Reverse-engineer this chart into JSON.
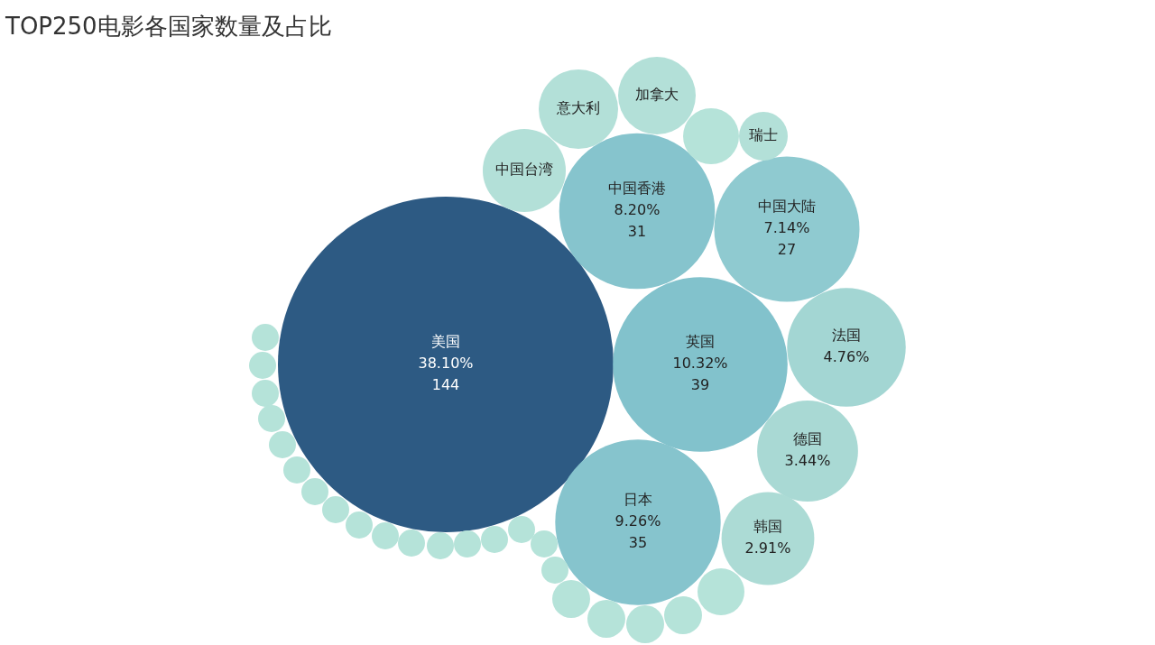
{
  "chart_data": {
    "type": "other",
    "title": "TOP250电影各国家数量及占比",
    "categories": [
      "美国",
      "中国香港",
      "中国大陆",
      "英国",
      "日本",
      "法国",
      "德国",
      "韩国",
      "中国台湾",
      "意大利",
      "加拿大",
      "瑞士",
      null,
      null,
      null,
      null,
      null,
      null,
      null,
      null,
      null,
      null,
      null,
      null,
      null,
      null,
      null,
      null,
      null,
      null,
      null,
      null,
      null,
      null,
      null
    ],
    "values": [
      38.1,
      8.2,
      7.14,
      10.32,
      9.26,
      4.76,
      3.44,
      2.91,
      null,
      null,
      null,
      null,
      null,
      null,
      null,
      null,
      null,
      null,
      null,
      null,
      null,
      null,
      null,
      null,
      null,
      null,
      null,
      null,
      null,
      null,
      null,
      null,
      null,
      null,
      null
    ],
    "value_labels": [
      "38.10%",
      "8.20%",
      "7.14%",
      "10.32%",
      "9.26%",
      "4.76%",
      "3.44%",
      "2.91%",
      null,
      null,
      null,
      null,
      null,
      null,
      null,
      null,
      null,
      null,
      null,
      null,
      null,
      null,
      null,
      null,
      null,
      null,
      null,
      null,
      null,
      null,
      null,
      null,
      null,
      null,
      null
    ],
    "annotations": [
      {
        "text": "144",
        "x": "美国"
      },
      {
        "text": "31",
        "x": "中国香港"
      },
      {
        "text": "27",
        "x": "中国大陆"
      },
      {
        "text": "39",
        "x": "英国"
      },
      {
        "text": "35",
        "x": "日本"
      }
    ],
    "colors": [
      "#2d5a83",
      "#86c4cd",
      "#8fcad0",
      "#82c2cc",
      "#86c4cd",
      "#a3d6d3",
      "#a9d9d4",
      "#acdbd5",
      "#b3e0d8",
      "#b3e0d8",
      "#b3e0d8",
      "#b3e0d8",
      "#b5e3d9",
      "#b5e3d9",
      "#b5e3d9",
      "#b5e3d9",
      "#b5e3d9",
      "#b5e3d9",
      "#b5e3d9",
      "#b5e3d9",
      "#b5e3d9",
      "#b5e3d9",
      "#b5e3d9",
      "#b5e3d9",
      "#b5e3d9",
      "#b5e3d9",
      "#b5e3d9",
      "#b5e3d9",
      "#b5e3d9",
      "#b5e3d9",
      "#b5e3d9",
      "#b5e3d9",
      "#b5e3d9",
      "#b5e3d9",
      "#b5e3d9"
    ]
  }
}
